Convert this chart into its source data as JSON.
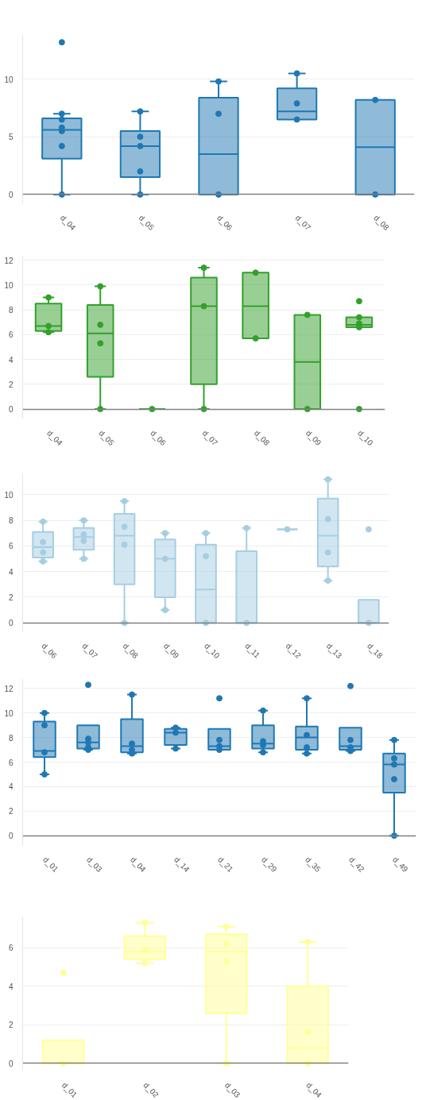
{
  "chart_data": [
    {
      "type": "box",
      "categories": [
        "d_04",
        "d_05",
        "d_06",
        "d_07",
        "d_08"
      ],
      "ylim": [
        -0.8,
        13.8
      ],
      "yticks": [
        0,
        5,
        10
      ],
      "grid": "y",
      "series": [
        {
          "type": "box",
          "color": "#1f78b4",
          "boxes": [
            {
              "low": 0,
              "q1": 3.1,
              "median": 5.6,
              "q3": 6.6,
              "high": 7.0
            },
            {
              "low": 0,
              "q1": 1.5,
              "median": 4.2,
              "q3": 5.5,
              "high": 7.2
            },
            {
              "low": 0,
              "q1": 0,
              "median": 3.5,
              "q3": 8.4,
              "high": 9.8
            },
            {
              "low": 6.5,
              "q1": 6.5,
              "median": 7.2,
              "q3": 9.2,
              "high": 10.5
            },
            {
              "low": 0,
              "q1": 0,
              "median": 4.1,
              "q3": 8.2,
              "high": 8.2
            }
          ]
        },
        {
          "type": "scatter",
          "color": "#1f78b4",
          "marker": "circle",
          "x": [
            "d_04",
            "d_04",
            "d_04",
            "d_04",
            "d_04",
            "d_04",
            "d_04",
            "d_05",
            "d_05",
            "d_05",
            "d_05",
            "d_05",
            "d_06",
            "d_06",
            "d_06",
            "d_07",
            "d_07",
            "d_07",
            "d_08",
            "d_08"
          ],
          "values": [
            0,
            4.2,
            5.5,
            5.8,
            6.5,
            7.0,
            13.2,
            0,
            2.0,
            4.2,
            5.0,
            7.2,
            0,
            7.0,
            9.8,
            6.5,
            7.9,
            10.5,
            0,
            8.2
          ]
        }
      ]
    },
    {
      "type": "box",
      "categories": [
        "d_04",
        "d_05",
        "d_06",
        "d_07",
        "d_08",
        "d_09",
        "d_10"
      ],
      "ylim": [
        -0.8,
        12.4
      ],
      "yticks": [
        0,
        2,
        4,
        6,
        8,
        10,
        12
      ],
      "grid": "y",
      "series": [
        {
          "type": "box",
          "color": "#33a02c",
          "boxes": [
            {
              "low": 6.2,
              "q1": 6.3,
              "median": 6.7,
              "q3": 8.5,
              "high": 9.0
            },
            {
              "low": 0,
              "q1": 2.6,
              "median": 6.1,
              "q3": 8.4,
              "high": 9.9
            },
            {
              "low": 0,
              "q1": 0,
              "median": 0,
              "q3": 0,
              "high": 0
            },
            {
              "low": 0,
              "q1": 2.0,
              "median": 8.3,
              "q3": 10.6,
              "high": 11.4
            },
            {
              "low": 5.7,
              "q1": 5.7,
              "median": 8.3,
              "q3": 11.0,
              "high": 11.0
            },
            {
              "low": 0,
              "q1": 0,
              "median": 3.8,
              "q3": 7.6,
              "high": 7.6
            },
            {
              "low": 6.6,
              "q1": 6.6,
              "median": 6.8,
              "q3": 7.4,
              "high": 7.4
            }
          ]
        },
        {
          "type": "scatter",
          "color": "#33a02c",
          "marker": "circle",
          "x": [
            "d_04",
            "d_04",
            "d_04",
            "d_05",
            "d_05",
            "d_05",
            "d_05",
            "d_06",
            "d_07",
            "d_07",
            "d_07",
            "d_08",
            "d_08",
            "d_09",
            "d_09",
            "d_10",
            "d_10",
            "d_10",
            "d_10",
            "d_10"
          ],
          "values": [
            6.2,
            6.7,
            9.0,
            0,
            5.3,
            6.8,
            9.9,
            0,
            0,
            8.3,
            11.4,
            5.7,
            11.0,
            0,
            7.6,
            0,
            6.6,
            6.9,
            7.4,
            8.7
          ]
        }
      ]
    },
    {
      "type": "box",
      "categories": [
        "d_06",
        "d_07",
        "d_08",
        "d_09",
        "d_10",
        "d_11",
        "d_12",
        "d_13",
        "d_18"
      ],
      "ylim": [
        -0.7,
        11.7
      ],
      "yticks": [
        0,
        2,
        4,
        6,
        8,
        10
      ],
      "grid": "y",
      "series": [
        {
          "type": "box",
          "color": "#a6cee3",
          "boxes": [
            {
              "low": 4.8,
              "q1": 5.1,
              "median": 5.9,
              "q3": 7.1,
              "high": 7.9
            },
            {
              "low": 5.0,
              "q1": 5.7,
              "median": 6.7,
              "q3": 7.4,
              "high": 8.0
            },
            {
              "low": 0,
              "q1": 3.0,
              "median": 6.8,
              "q3": 8.5,
              "high": 9.5
            },
            {
              "low": 1.0,
              "q1": 2.0,
              "median": 5.0,
              "q3": 6.5,
              "high": 7.0
            },
            {
              "low": 0,
              "q1": 0,
              "median": 2.6,
              "q3": 6.1,
              "high": 7.0
            },
            {
              "low": 0,
              "q1": 0,
              "median": 0,
              "q3": 5.6,
              "high": 7.4
            },
            {
              "low": 7.3,
              "q1": 7.3,
              "median": 7.3,
              "q3": 7.3,
              "high": 7.3
            },
            {
              "low": 3.3,
              "q1": 4.4,
              "median": 6.8,
              "q3": 9.7,
              "high": 11.2
            },
            {
              "low": 0,
              "q1": 0,
              "median": 0,
              "q3": 1.8,
              "high": 1.8
            }
          ]
        },
        {
          "type": "scatter",
          "color": "#a6cee3",
          "marker": "circle",
          "x": [
            "d_06",
            "d_06",
            "d_06",
            "d_06",
            "d_07",
            "d_07",
            "d_07",
            "d_07",
            "d_08",
            "d_08",
            "d_08",
            "d_08",
            "d_09",
            "d_09",
            "d_09",
            "d_10",
            "d_10",
            "d_10",
            "d_11",
            "d_11",
            "d_12",
            "d_13",
            "d_13",
            "d_13",
            "d_13",
            "d_18",
            "d_18"
          ],
          "values": [
            4.8,
            5.5,
            6.3,
            7.9,
            5.0,
            6.4,
            6.9,
            8.0,
            0,
            6.1,
            7.5,
            9.5,
            1.0,
            5.0,
            7.0,
            0,
            5.2,
            7.0,
            0,
            7.4,
            7.3,
            3.3,
            5.5,
            8.1,
            11.2,
            0,
            7.3
          ]
        }
      ]
    },
    {
      "type": "box",
      "categories": [
        "d_01",
        "d_03",
        "d_04",
        "d_14",
        "d_21",
        "d_29",
        "d_35",
        "d_42",
        "d_49"
      ],
      "ylim": [
        -0.8,
        12.8
      ],
      "yticks": [
        0,
        2,
        4,
        6,
        8,
        10,
        12
      ],
      "grid": "y",
      "series": [
        {
          "type": "box",
          "color": "#1f78b4",
          "boxes": [
            {
              "low": 5.0,
              "q1": 6.4,
              "median": 6.9,
              "q3": 9.3,
              "high": 10.0
            },
            {
              "low": 7.0,
              "q1": 7.1,
              "median": 7.6,
              "q3": 9.0,
              "high": 9.0
            },
            {
              "low": 6.7,
              "q1": 6.8,
              "median": 7.3,
              "q3": 9.5,
              "high": 11.5
            },
            {
              "low": 7.1,
              "q1": 7.4,
              "median": 8.4,
              "q3": 8.7,
              "high": 8.8
            },
            {
              "low": 7.0,
              "q1": 7.0,
              "median": 7.3,
              "q3": 8.7,
              "high": 8.7
            },
            {
              "low": 6.8,
              "q1": 7.1,
              "median": 7.5,
              "q3": 9.0,
              "high": 10.2
            },
            {
              "low": 6.7,
              "q1": 7.0,
              "median": 8.0,
              "q3": 8.9,
              "high": 11.2
            },
            {
              "low": 6.9,
              "q1": 7.0,
              "median": 7.3,
              "q3": 8.8,
              "high": 8.8
            },
            {
              "low": 0,
              "q1": 3.5,
              "median": 5.8,
              "q3": 6.7,
              "high": 7.8
            }
          ]
        },
        {
          "type": "scatter",
          "color": "#1f78b4",
          "marker": "circle",
          "x": [
            "d_01",
            "d_01",
            "d_01",
            "d_01",
            "d_03",
            "d_03",
            "d_03",
            "d_03",
            "d_03",
            "d_04",
            "d_04",
            "d_04",
            "d_04",
            "d_14",
            "d_14",
            "d_14",
            "d_21",
            "d_21",
            "d_21",
            "d_21",
            "d_29",
            "d_29",
            "d_29",
            "d_29",
            "d_35",
            "d_35",
            "d_35",
            "d_35",
            "d_42",
            "d_42",
            "d_42",
            "d_42",
            "d_49",
            "d_49",
            "d_49",
            "d_49",
            "d_49"
          ],
          "values": [
            5.0,
            6.8,
            9.0,
            10.0,
            7.0,
            7.2,
            7.6,
            7.9,
            12.3,
            6.7,
            7.0,
            7.5,
            11.5,
            7.1,
            8.4,
            8.8,
            7.0,
            7.3,
            7.8,
            11.2,
            6.8,
            7.4,
            7.7,
            10.2,
            6.7,
            7.2,
            8.2,
            11.2,
            6.9,
            7.2,
            7.8,
            12.2,
            0,
            4.6,
            5.8,
            6.3,
            7.8
          ]
        }
      ]
    },
    {
      "type": "box",
      "categories": [
        "d_01",
        "d_02",
        "d_03",
        "d_04"
      ],
      "ylim": [
        -0.4,
        7.6
      ],
      "yticks": [
        0,
        2,
        4,
        6
      ],
      "grid": "y",
      "series": [
        {
          "type": "box",
          "color": "#ffff99",
          "boxes": [
            {
              "low": 0,
              "q1": 0,
              "median": 0,
              "q3": 1.2,
              "high": 1.2
            },
            {
              "low": 5.2,
              "q1": 5.4,
              "median": 5.8,
              "q3": 6.6,
              "high": 7.3
            },
            {
              "low": 0,
              "q1": 2.6,
              "median": 5.8,
              "q3": 6.7,
              "high": 7.1
            },
            {
              "low": 0,
              "q1": 0,
              "median": 0.8,
              "q3": 4.0,
              "high": 6.3
            }
          ]
        },
        {
          "type": "scatter",
          "color": "#ffff99",
          "marker": "circle",
          "x": [
            "d_01",
            "d_01",
            "d_02",
            "d_02",
            "d_02",
            "d_03",
            "d_03",
            "d_03",
            "d_03",
            "d_04",
            "d_04",
            "d_04"
          ],
          "values": [
            0,
            4.7,
            5.2,
            5.9,
            7.3,
            0,
            5.3,
            6.2,
            7.1,
            0,
            1.6,
            6.3
          ]
        }
      ]
    }
  ]
}
